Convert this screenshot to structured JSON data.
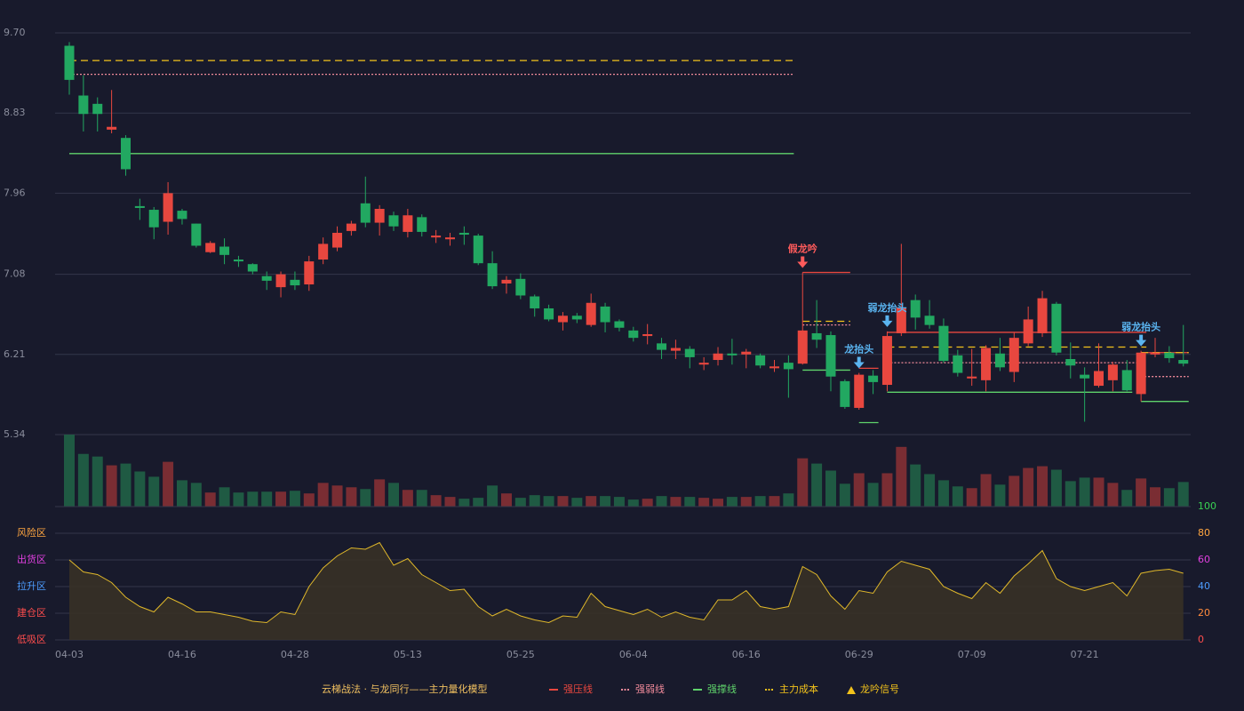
{
  "chart_data": {
    "type": "candlestick",
    "up_color": "#e8473f",
    "down_color": "#22a861",
    "volume_up_color": "#7a2d33",
    "volume_down_color": "#1f5a43",
    "categories": [
      "04-03",
      null,
      null,
      null,
      null,
      null,
      null,
      null,
      "04-16",
      null,
      null,
      null,
      null,
      null,
      null,
      null,
      "04-28",
      null,
      null,
      null,
      null,
      null,
      null,
      null,
      "05-13",
      null,
      null,
      null,
      null,
      null,
      null,
      null,
      "05-25",
      null,
      null,
      null,
      null,
      null,
      null,
      null,
      "06-04",
      null,
      null,
      null,
      null,
      null,
      null,
      null,
      "06-16",
      null,
      null,
      null,
      null,
      null,
      null,
      null,
      "06-29",
      null,
      null,
      null,
      null,
      null,
      null,
      null,
      "07-09",
      null,
      null,
      null,
      null,
      null,
      null,
      null,
      "07-21",
      null,
      null,
      null,
      null,
      null,
      null,
      null
    ],
    "open": [
      9.56,
      9.02,
      8.93,
      8.65,
      8.56,
      7.82,
      7.78,
      7.65,
      7.77,
      7.63,
      7.32,
      7.38,
      7.24,
      7.19,
      7.06,
      6.94,
      7.02,
      6.97,
      7.24,
      7.37,
      7.55,
      7.85,
      7.64,
      7.72,
      7.54,
      7.7,
      7.48,
      7.46,
      7.53,
      7.5,
      7.2,
      6.98,
      7.03,
      6.84,
      6.71,
      6.56,
      6.63,
      6.53,
      6.73,
      6.57,
      6.47,
      6.41,
      6.33,
      6.25,
      6.27,
      6.1,
      6.15,
      6.22,
      6.21,
      6.2,
      6.06,
      6.12,
      6.11,
      6.44,
      6.42,
      5.92,
      5.63,
      5.98,
      5.88,
      6.44,
      6.8,
      6.63,
      6.52,
      6.2,
      5.95,
      5.93,
      6.22,
      6.02,
      6.33,
      6.44,
      6.76,
      6.16,
      5.99,
      5.87,
      5.93,
      6.04,
      5.78,
      6.21,
      6.23,
      6.15
    ],
    "high": [
      9.6,
      9.24,
      9.0,
      9.08,
      8.59,
      7.9,
      7.81,
      8.08,
      7.79,
      7.63,
      7.44,
      7.47,
      7.28,
      7.2,
      7.11,
      7.11,
      7.11,
      7.28,
      7.48,
      7.6,
      7.66,
      8.14,
      7.83,
      7.76,
      7.79,
      7.73,
      7.56,
      7.53,
      7.6,
      7.52,
      7.33,
      7.06,
      7.09,
      6.86,
      6.75,
      6.67,
      6.66,
      6.87,
      6.77,
      6.59,
      6.51,
      6.54,
      6.39,
      6.37,
      6.3,
      6.18,
      6.29,
      6.38,
      6.27,
      6.22,
      6.15,
      6.2,
      7.1,
      6.8,
      6.46,
      5.94,
      6.01,
      6.04,
      6.46,
      7.41,
      6.86,
      6.8,
      6.6,
      6.26,
      6.27,
      6.31,
      6.39,
      6.45,
      6.73,
      6.9,
      6.78,
      6.34,
      6.07,
      6.33,
      6.13,
      6.15,
      6.25,
      6.39,
      6.3,
      6.53
    ],
    "low": [
      9.03,
      8.63,
      8.63,
      8.61,
      8.15,
      7.67,
      7.46,
      7.51,
      7.62,
      7.37,
      7.31,
      7.19,
      7.16,
      7.08,
      6.91,
      6.83,
      6.91,
      6.9,
      7.19,
      7.33,
      7.5,
      7.59,
      7.5,
      7.55,
      7.48,
      7.49,
      7.42,
      7.39,
      7.4,
      7.18,
      6.92,
      6.87,
      6.81,
      6.62,
      6.57,
      6.47,
      6.55,
      6.51,
      6.45,
      6.46,
      6.35,
      6.32,
      6.16,
      6.16,
      6.06,
      6.04,
      6.09,
      6.1,
      6.06,
      6.06,
      6.02,
      5.74,
      6.1,
      6.28,
      5.81,
      5.62,
      5.61,
      5.78,
      5.81,
      6.41,
      6.48,
      6.49,
      6.12,
      5.97,
      5.87,
      5.81,
      6.03,
      5.91,
      6.3,
      6.4,
      6.2,
      5.95,
      5.48,
      5.85,
      5.81,
      5.81,
      5.7,
      6.18,
      6.12,
      6.08
    ],
    "close": [
      9.19,
      8.82,
      8.82,
      8.68,
      8.22,
      7.8,
      7.59,
      7.96,
      7.68,
      7.39,
      7.42,
      7.29,
      7.22,
      7.11,
      7.01,
      7.08,
      6.96,
      7.22,
      7.41,
      7.53,
      7.63,
      7.64,
      7.79,
      7.6,
      7.72,
      7.54,
      7.5,
      7.48,
      7.51,
      7.2,
      6.95,
      7.02,
      6.85,
      6.71,
      6.59,
      6.63,
      6.59,
      6.77,
      6.56,
      6.5,
      6.39,
      6.43,
      6.26,
      6.28,
      6.18,
      6.12,
      6.22,
      6.2,
      6.24,
      6.09,
      6.08,
      6.05,
      6.47,
      6.37,
      5.97,
      5.64,
      5.99,
      5.91,
      6.41,
      6.72,
      6.61,
      6.53,
      6.14,
      6.01,
      5.97,
      6.28,
      6.07,
      6.39,
      6.59,
      6.82,
      6.23,
      6.09,
      5.95,
      6.03,
      6.1,
      5.82,
      6.23,
      6.23,
      6.17,
      6.11
    ],
    "ylim": [
      5.34,
      9.7
    ],
    "yticks": [
      {
        "value": 9.7,
        "label": "9.70"
      },
      8.83,
      7.96,
      7.08,
      6.21,
      5.34
    ],
    "volume": [
      82,
      60,
      57,
      47,
      49,
      40,
      34,
      51,
      30,
      27,
      16,
      22,
      16,
      17,
      17,
      17,
      18,
      15,
      27,
      24,
      22,
      20,
      31,
      27,
      19,
      19,
      13,
      11,
      9,
      10,
      24,
      15,
      10,
      13,
      12,
      12,
      10,
      12,
      12,
      11,
      8,
      9,
      12,
      11,
      11,
      10,
      9,
      11,
      11,
      12,
      12,
      15,
      55,
      49,
      41,
      26,
      38,
      27,
      38,
      68,
      48,
      37,
      30,
      23,
      21,
      37,
      25,
      35,
      44,
      46,
      42,
      29,
      33,
      33,
      27,
      19,
      32,
      22,
      21,
      28
    ],
    "overlays": [
      {
        "name": "强压线",
        "color": "#e8473f",
        "dash": "none",
        "segments": [
          {
            "start": 52,
            "end": 55,
            "value": 7.1
          },
          {
            "start": 56,
            "end": 57,
            "value": 6.06
          },
          {
            "start": 58,
            "end": 76,
            "value": 6.45
          },
          {
            "start": 76,
            "end": 79,
            "value": 6.23
          }
        ]
      },
      {
        "name": "强弱线",
        "color": "#f08a9a",
        "dash": "2 2",
        "segments": [
          {
            "start": 0,
            "end": 51,
            "value": 9.25
          },
          {
            "start": 52,
            "end": 55,
            "value": 6.53
          },
          {
            "start": 58,
            "end": 76,
            "value": 6.12
          },
          {
            "start": 76,
            "end": 79,
            "value": 5.97
          }
        ]
      },
      {
        "name": "强撑线",
        "color": "#5fd36b",
        "dash": "none",
        "segments": [
          {
            "start": 0,
            "end": 51,
            "value": 8.39
          },
          {
            "start": 52,
            "end": 55,
            "value": 6.04
          },
          {
            "start": 56,
            "end": 57,
            "value": 5.47
          },
          {
            "start": 58,
            "end": 75,
            "value": 5.8
          },
          {
            "start": 76,
            "end": 79,
            "value": 5.7
          }
        ]
      },
      {
        "name": "主力成本",
        "color": "#f2c21b",
        "dash": "8 5",
        "segments": [
          {
            "start": 0,
            "end": 51,
            "value": 9.4
          },
          {
            "start": 52,
            "end": 55,
            "value": 6.57
          },
          {
            "start": 58,
            "end": 76,
            "value": 6.29
          },
          {
            "start": 76,
            "end": 79,
            "value": 6.23
          }
        ]
      }
    ],
    "signals": [
      {
        "label": "假龙吟",
        "index": 52,
        "color": "#ff5b5b"
      },
      {
        "label": "龙抬头",
        "index": 56,
        "color": "#5ab4f0"
      },
      {
        "label": "弱龙抬头",
        "index": 58,
        "color": "#5ab4f0"
      },
      {
        "label": "弱龙抬头",
        "index": 76,
        "color": "#5ab4f0"
      }
    ],
    "indicator": {
      "values": [
        60,
        51,
        49,
        43,
        32,
        25,
        21,
        32,
        27,
        21,
        21,
        19,
        17,
        14,
        13,
        21,
        19,
        40,
        54,
        63,
        69,
        68,
        73,
        56,
        61,
        49,
        43,
        37,
        38,
        25,
        18,
        23,
        18,
        15,
        13,
        18,
        17,
        35,
        25,
        22,
        19,
        23,
        17,
        21,
        17,
        15,
        30,
        30,
        37,
        25,
        23,
        25,
        55,
        49,
        33,
        23,
        37,
        35,
        51,
        59,
        56,
        53,
        40,
        35,
        31,
        43,
        35,
        48,
        57,
        67,
        46,
        40,
        37,
        40,
        43,
        33,
        50,
        52,
        53,
        50
      ],
      "color": "#e0b82a",
      "ylim": [
        0,
        100
      ],
      "yticks": [
        0,
        20,
        40,
        60,
        80,
        100
      ],
      "ytick_colors": [
        "#ff4d4d",
        "#ff8a3c",
        "#4d9dff",
        "#e040e0",
        "#ffa640",
        "#39d353"
      ],
      "zones": [
        {
          "label": "风险区",
          "value": 80,
          "color": "#ffa640"
        },
        {
          "label": "出货区",
          "value": 60,
          "color": "#e040e0"
        },
        {
          "label": "拉升区",
          "value": 40,
          "color": "#4d9dff"
        },
        {
          "label": "建仓区",
          "value": 20,
          "color": "#ff4d4d"
        },
        {
          "label": "低吸区",
          "value": 0,
          "color": "#ff4d4d"
        }
      ]
    },
    "legend_title": "云梯战法 · 与龙同行——主力量化模型",
    "signal_legend": "龙吟信号"
  }
}
